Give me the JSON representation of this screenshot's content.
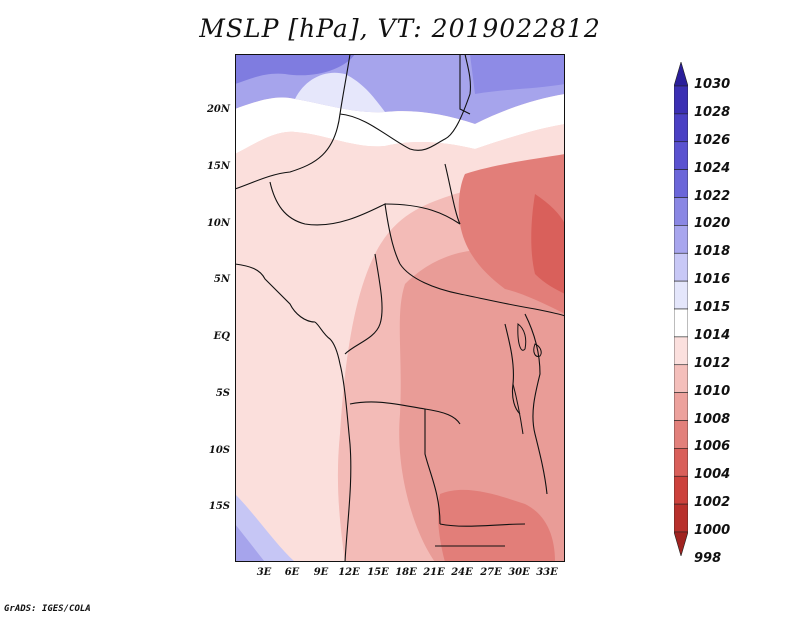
{
  "title": "MSLP [hPa], VT: 2019022812",
  "credit": "GrADS: IGES/COLA",
  "y_axis": {
    "labels": [
      "20N",
      "15N",
      "10N",
      "5N",
      "EQ",
      "5S",
      "10S",
      "15S"
    ]
  },
  "x_axis": {
    "labels": [
      "3E",
      "6E",
      "9E",
      "12E",
      "15E",
      "18E",
      "21E",
      "24E",
      "27E",
      "30E",
      "33E"
    ]
  },
  "colorbar": {
    "labels": [
      "1030",
      "1028",
      "1026",
      "1024",
      "1022",
      "1020",
      "1018",
      "1016",
      "1015",
      "1014",
      "1012",
      "1010",
      "1008",
      "1006",
      "1004",
      "1002",
      "1000",
      "998"
    ],
    "colors": [
      "#2a1e9a",
      "#3b2fb3",
      "#4a40c4",
      "#5a52d0",
      "#6b66d9",
      "#8a87e4",
      "#a8a6ee",
      "#c8c8f6",
      "#e4e6fb",
      "#ffffff",
      "#fbe0de",
      "#f4bfbb",
      "#eca19c",
      "#e2807b",
      "#d95f5a",
      "#cc413c",
      "#b8302c",
      "#a02320"
    ]
  }
}
